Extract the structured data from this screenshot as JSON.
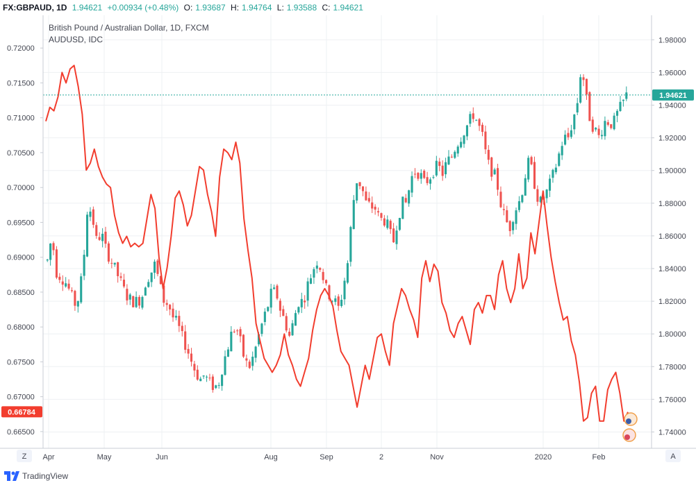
{
  "header": {
    "symbol": "FX:GBPAUD, 1D",
    "last": "1.94621",
    "change": "+0.00934 (+0.48%)",
    "o_label": "O:",
    "o": "1.93687",
    "h_label": "H:",
    "h": "1.94764",
    "l_label": "L:",
    "l": "1.93588",
    "c_label": "C:",
    "c": "1.94621"
  },
  "legend": {
    "main": "British Pound / Australian Dollar, 1D, FXCM",
    "overlay": "AUDUSD, IDC"
  },
  "footer": {
    "brand": "TradingView",
    "left_button": "Z",
    "right_button": "A"
  },
  "colors": {
    "up": "#26a69a",
    "down": "#ef5350",
    "line": "#f23d2e",
    "grid": "#eef0f3",
    "axis": "#c8ccd4"
  },
  "chart_data": {
    "type": "line",
    "title": "British Pound / Australian Dollar, 1D, FXCM",
    "x_labels": [
      "Apr",
      "May",
      "Jun",
      "Aug",
      "Sep",
      "2",
      "Nov",
      "2020",
      "Feb"
    ],
    "right_axis": {
      "name": "GBPAUD",
      "ylim": [
        1.73,
        1.995
      ],
      "ticks": [
        "1.98000",
        "1.96000",
        "1.94000",
        "1.92000",
        "1.90000",
        "1.88000",
        "1.86000",
        "1.84000",
        "1.82000",
        "1.80000",
        "1.78000",
        "1.76000",
        "1.74000"
      ],
      "last_label": "1.94621",
      "last_value": 1.94621
    },
    "left_axis": {
      "name": "AUDUSD",
      "ylim": [
        0.6626,
        0.7247
      ],
      "ticks": [
        "0.72000",
        "0.71500",
        "0.71000",
        "0.70500",
        "0.70000",
        "0.69500",
        "0.69000",
        "0.68500",
        "0.68000",
        "0.67500",
        "0.67000",
        "0.66500"
      ],
      "last_label": "0.66784",
      "last_value": 0.66784
    },
    "series": [
      {
        "name": "GBPAUD",
        "type": "candlestick",
        "close_path": [
          1.845,
          1.86,
          1.838,
          1.835,
          1.832,
          1.826,
          1.818,
          1.822,
          1.842,
          1.88,
          1.872,
          1.856,
          1.862,
          1.852,
          1.846,
          1.84,
          1.834,
          1.827,
          1.822,
          1.82,
          1.82,
          1.822,
          1.833,
          1.837,
          1.843,
          1.83,
          1.82,
          1.818,
          1.81,
          1.806,
          1.798,
          1.792,
          1.784,
          1.777,
          1.772,
          1.775,
          1.77,
          1.768,
          1.768,
          1.78,
          1.79,
          1.8,
          1.805,
          1.795,
          1.783,
          1.78,
          1.787,
          1.798,
          1.808,
          1.816,
          1.826,
          1.825,
          1.814,
          1.807,
          1.798,
          1.81,
          1.82,
          1.82,
          1.83,
          1.838,
          1.845,
          1.84,
          1.828,
          1.823,
          1.82,
          1.815,
          1.83,
          1.845,
          1.878,
          1.895,
          1.89,
          1.88,
          1.878,
          1.877,
          1.87,
          1.87,
          1.865,
          1.855,
          1.87,
          1.88,
          1.88,
          1.895,
          1.9,
          1.898,
          1.892,
          1.895,
          1.9,
          1.903,
          1.898,
          1.905,
          1.908,
          1.915,
          1.92,
          1.925,
          1.93,
          1.935,
          1.928,
          1.92,
          1.905,
          1.9,
          1.895,
          1.88,
          1.87,
          1.865,
          1.875,
          1.88,
          1.89,
          1.905,
          1.9,
          1.885,
          1.88,
          1.885,
          1.892,
          1.9,
          1.91,
          1.92,
          1.92,
          1.93,
          1.94,
          1.965,
          1.945,
          1.93,
          1.925,
          1.92,
          1.93,
          1.93,
          1.928,
          1.935,
          1.94,
          1.946
        ]
      },
      {
        "name": "AUDUSD",
        "type": "line",
        "color": "#f23d2e",
        "values": [
          0.7095,
          0.7115,
          0.711,
          0.713,
          0.7165,
          0.715,
          0.717,
          0.7175,
          0.7145,
          0.7105,
          0.7025,
          0.7035,
          0.7055,
          0.703,
          0.7015,
          0.7005,
          0.7,
          0.696,
          0.6935,
          0.692,
          0.693,
          0.6915,
          0.692,
          0.6915,
          0.692,
          0.6955,
          0.699,
          0.697,
          0.69,
          0.6855,
          0.6885,
          0.693,
          0.6985,
          0.6995,
          0.6975,
          0.6945,
          0.696,
          0.6995,
          0.703,
          0.7025,
          0.699,
          0.6965,
          0.693,
          0.7015,
          0.7055,
          0.705,
          0.704,
          0.7065,
          0.7035,
          0.6955,
          0.691,
          0.687,
          0.6805,
          0.678,
          0.6755,
          0.6745,
          0.6735,
          0.6745,
          0.676,
          0.679,
          0.676,
          0.6745,
          0.6725,
          0.6715,
          0.6735,
          0.6755,
          0.6795,
          0.6825,
          0.6845,
          0.6855,
          0.6845,
          0.683,
          0.6795,
          0.6765,
          0.6755,
          0.6745,
          0.6715,
          0.6685,
          0.6715,
          0.6745,
          0.6725,
          0.6755,
          0.6785,
          0.679,
          0.6765,
          0.6745,
          0.6805,
          0.683,
          0.6855,
          0.6845,
          0.6825,
          0.681,
          0.6785,
          0.687,
          0.6895,
          0.6865,
          0.689,
          0.688,
          0.6835,
          0.682,
          0.6795,
          0.6785,
          0.6805,
          0.6815,
          0.6795,
          0.6775,
          0.6825,
          0.6835,
          0.682,
          0.6845,
          0.6845,
          0.6825,
          0.6875,
          0.6895,
          0.6855,
          0.6835,
          0.6855,
          0.6905,
          0.6855,
          0.687,
          0.6935,
          0.6905,
          0.695,
          0.6995,
          0.6945,
          0.69,
          0.6865,
          0.6835,
          0.681,
          0.6815,
          0.678,
          0.676,
          0.672,
          0.6665,
          0.667,
          0.6705,
          0.6715,
          0.6665,
          0.6665,
          0.671,
          0.6725,
          0.6735,
          0.6705,
          0.6665,
          0.6678
        ]
      }
    ]
  }
}
